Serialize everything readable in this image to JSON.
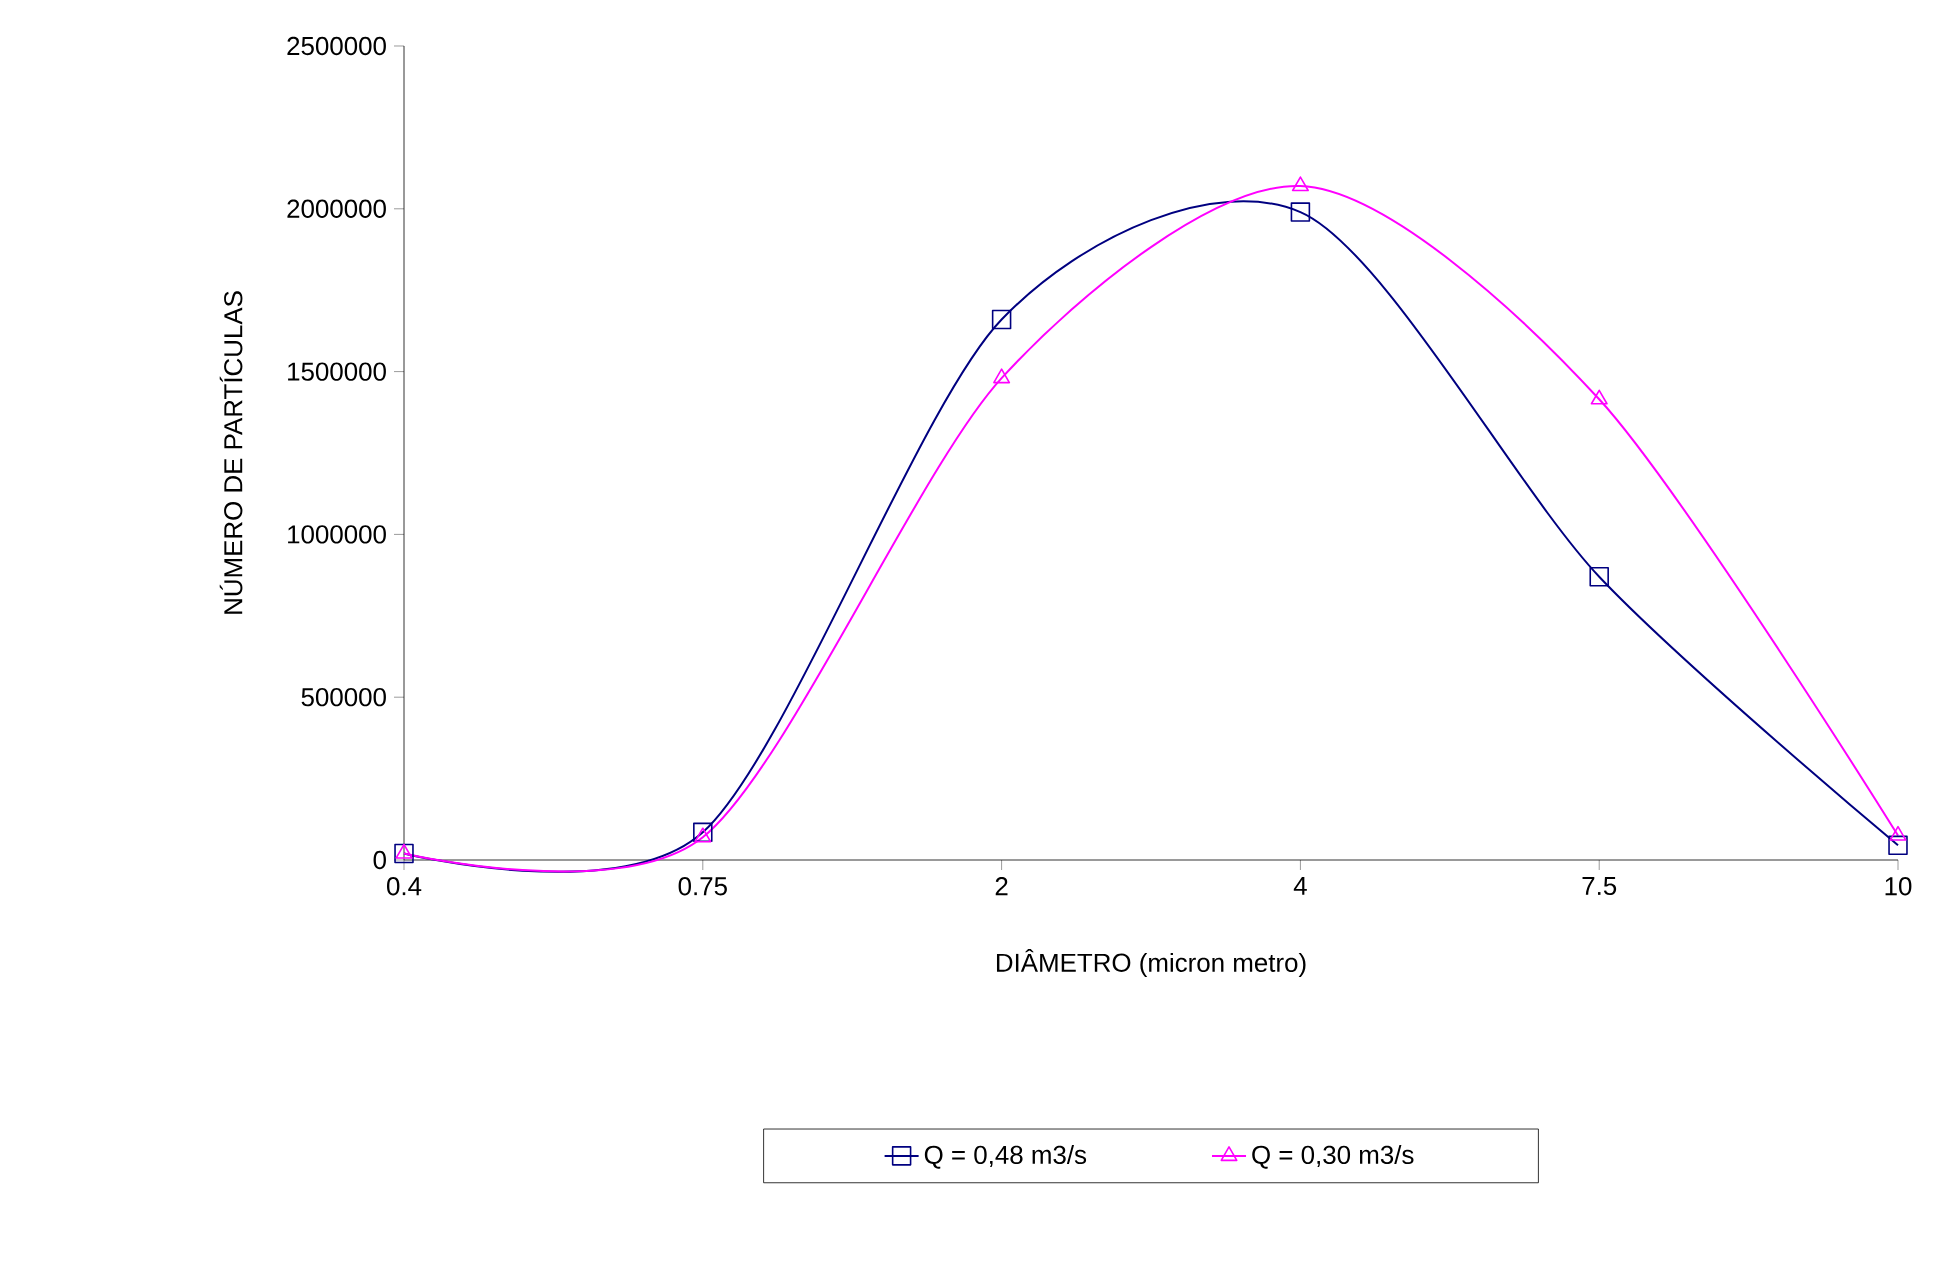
{
  "chart_data": {
    "type": "line",
    "xlabel": "DIÂMETRO (micron metro)",
    "ylabel": "NÚMERO DE PARTÍCULAS",
    "categories": [
      "0.4",
      "0.75",
      "2",
      "4",
      "7.5",
      "10"
    ],
    "series": [
      {
        "name": "Q = 0,48 m3/s",
        "color": "#000080",
        "marker": "square",
        "values": [
          20000,
          85000,
          1660000,
          1990000,
          870000,
          45000
        ]
      },
      {
        "name": "Q = 0,30 m3/s",
        "color": "#ff00ff",
        "marker": "triangle",
        "values": [
          20000,
          70000,
          1480000,
          2070000,
          1415000,
          75000
        ]
      }
    ],
    "ylim": [
      0,
      2500000
    ],
    "yticks": [
      0,
      500000,
      1000000,
      1500000,
      2000000,
      2500000
    ],
    "grid": false,
    "legend": "bottom",
    "line_style": "solid"
  }
}
